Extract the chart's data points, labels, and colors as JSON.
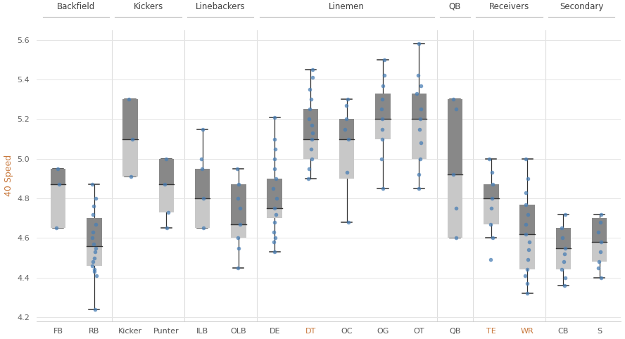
{
  "positions_info": {
    "FB": {
      "whisker_low": 4.65,
      "q1": 4.65,
      "median": 4.87,
      "q3": 4.95,
      "whisker_high": 4.95,
      "points": [
        4.65,
        4.87,
        4.95
      ]
    },
    "RB": {
      "whisker_low": 4.24,
      "q1": 4.46,
      "median": 4.56,
      "q3": 4.7,
      "whisker_high": 4.87,
      "points": [
        4.24,
        4.41,
        4.43,
        4.44,
        4.46,
        4.48,
        4.5,
        4.53,
        4.55,
        4.57,
        4.6,
        4.63,
        4.67,
        4.72,
        4.76,
        4.8,
        4.87
      ]
    },
    "Kicker": {
      "whisker_low": 4.91,
      "q1": 4.91,
      "median": 5.1,
      "q3": 5.3,
      "whisker_high": 5.3,
      "points": [
        4.91,
        5.1,
        5.3
      ]
    },
    "Punter": {
      "whisker_low": 4.65,
      "q1": 4.73,
      "median": 4.87,
      "q3": 5.0,
      "whisker_high": 5.0,
      "points": [
        4.65,
        4.73,
        4.87,
        5.0
      ]
    },
    "ILB": {
      "whisker_low": 4.65,
      "q1": 4.65,
      "median": 4.8,
      "q3": 4.95,
      "whisker_high": 5.15,
      "points": [
        4.65,
        4.8,
        4.95,
        5.0,
        5.15
      ]
    },
    "OLB": {
      "whisker_low": 4.45,
      "q1": 4.6,
      "median": 4.67,
      "q3": 4.87,
      "whisker_high": 4.95,
      "points": [
        4.45,
        4.55,
        4.6,
        4.67,
        4.75,
        4.8,
        4.87,
        4.95
      ]
    },
    "DE": {
      "whisker_low": 4.53,
      "q1": 4.7,
      "median": 4.75,
      "q3": 4.9,
      "whisker_high": 5.21,
      "points": [
        4.53,
        4.58,
        4.6,
        4.63,
        4.68,
        4.72,
        4.75,
        4.8,
        4.85,
        4.9,
        4.95,
        5.0,
        5.05,
        5.1,
        5.21
      ]
    },
    "DT": {
      "whisker_low": 4.9,
      "q1": 5.0,
      "median": 5.1,
      "q3": 5.25,
      "whisker_high": 5.45,
      "points": [
        4.9,
        4.95,
        5.0,
        5.05,
        5.1,
        5.13,
        5.17,
        5.2,
        5.25,
        5.3,
        5.35,
        5.41,
        5.45
      ]
    },
    "OC": {
      "whisker_low": 4.68,
      "q1": 4.9,
      "median": 5.1,
      "q3": 5.2,
      "whisker_high": 5.3,
      "points": [
        4.68,
        4.93,
        5.1,
        5.15,
        5.2,
        5.27,
        5.3
      ]
    },
    "OG": {
      "whisker_low": 4.85,
      "q1": 5.1,
      "median": 5.2,
      "q3": 5.33,
      "whisker_high": 5.5,
      "points": [
        4.85,
        5.0,
        5.1,
        5.15,
        5.2,
        5.25,
        5.3,
        5.37,
        5.42,
        5.5
      ]
    },
    "OT": {
      "whisker_low": 4.85,
      "q1": 5.0,
      "median": 5.2,
      "q3": 5.33,
      "whisker_high": 5.58,
      "points": [
        4.85,
        4.92,
        5.0,
        5.08,
        5.15,
        5.2,
        5.25,
        5.33,
        5.37,
        5.42,
        5.58
      ]
    },
    "QB": {
      "whisker_low": 4.6,
      "q1": 4.6,
      "median": 4.92,
      "q3": 5.3,
      "whisker_high": 5.3,
      "points": [
        4.6,
        4.75,
        4.92,
        5.25,
        5.3
      ]
    },
    "TE": {
      "whisker_low": 4.6,
      "q1": 4.67,
      "median": 4.8,
      "q3": 4.87,
      "whisker_high": 5.0,
      "points": [
        4.49,
        4.6,
        4.67,
        4.75,
        4.8,
        4.87,
        4.93,
        5.0
      ]
    },
    "WR": {
      "whisker_low": 4.32,
      "q1": 4.44,
      "median": 4.62,
      "q3": 4.77,
      "whisker_high": 5.0,
      "points": [
        4.32,
        4.37,
        4.41,
        4.44,
        4.49,
        4.54,
        4.58,
        4.62,
        4.67,
        4.72,
        4.77,
        4.83,
        4.9,
        5.0
      ]
    },
    "CB": {
      "whisker_low": 4.36,
      "q1": 4.44,
      "median": 4.55,
      "q3": 4.65,
      "whisker_high": 4.72,
      "points": [
        4.36,
        4.4,
        4.44,
        4.48,
        4.52,
        4.55,
        4.6,
        4.65,
        4.72
      ]
    },
    "S": {
      "whisker_low": 4.4,
      "q1": 4.48,
      "median": 4.58,
      "q3": 4.7,
      "whisker_high": 4.72,
      "points": [
        4.4,
        4.45,
        4.48,
        4.53,
        4.58,
        4.63,
        4.68,
        4.72
      ]
    }
  },
  "groups": {
    "Backfield": [
      "FB",
      "RB"
    ],
    "Kickers": [
      "Kicker",
      "Punter"
    ],
    "Linebackers": [
      "ILB",
      "OLB"
    ],
    "Linemen": [
      "DE",
      "DT",
      "OC",
      "OG",
      "OT"
    ],
    "QB": [
      "QB"
    ],
    "Receivers": [
      "TE",
      "WR"
    ],
    "Secondary": [
      "CB",
      "S"
    ]
  },
  "group_order": [
    "Backfield",
    "Kickers",
    "Linebackers",
    "Linemen",
    "QB",
    "Receivers",
    "Secondary"
  ],
  "positions_order": [
    "FB",
    "RB",
    "Kicker",
    "Punter",
    "ILB",
    "OLB",
    "DE",
    "DT",
    "OC",
    "OG",
    "OT",
    "QB",
    "TE",
    "WR",
    "CB",
    "S"
  ],
  "colored_xlabels": [
    "DT",
    "TE",
    "WR"
  ],
  "ylim": [
    4.18,
    5.65
  ],
  "yticks": [
    4.2,
    4.4,
    4.6,
    4.8,
    5.0,
    5.2,
    5.4,
    5.6
  ],
  "ylabel": "40 Speed",
  "box_dark_color": "#888888",
  "box_light_color": "#c8c8c8",
  "whisker_color": "#333333",
  "median_color": "#333333",
  "point_color": "#4a7fb5",
  "point_alpha": 0.75,
  "group_label_color": "#c8783c",
  "xlabel_highlight_color": "#c8783c",
  "xlabel_normal_color": "#555555",
  "box_width": 0.42,
  "background_color": "#ffffff",
  "grid_color": "#e5e5e5",
  "divider_color": "#dddddd",
  "group_line_color": "#bbbbbb"
}
